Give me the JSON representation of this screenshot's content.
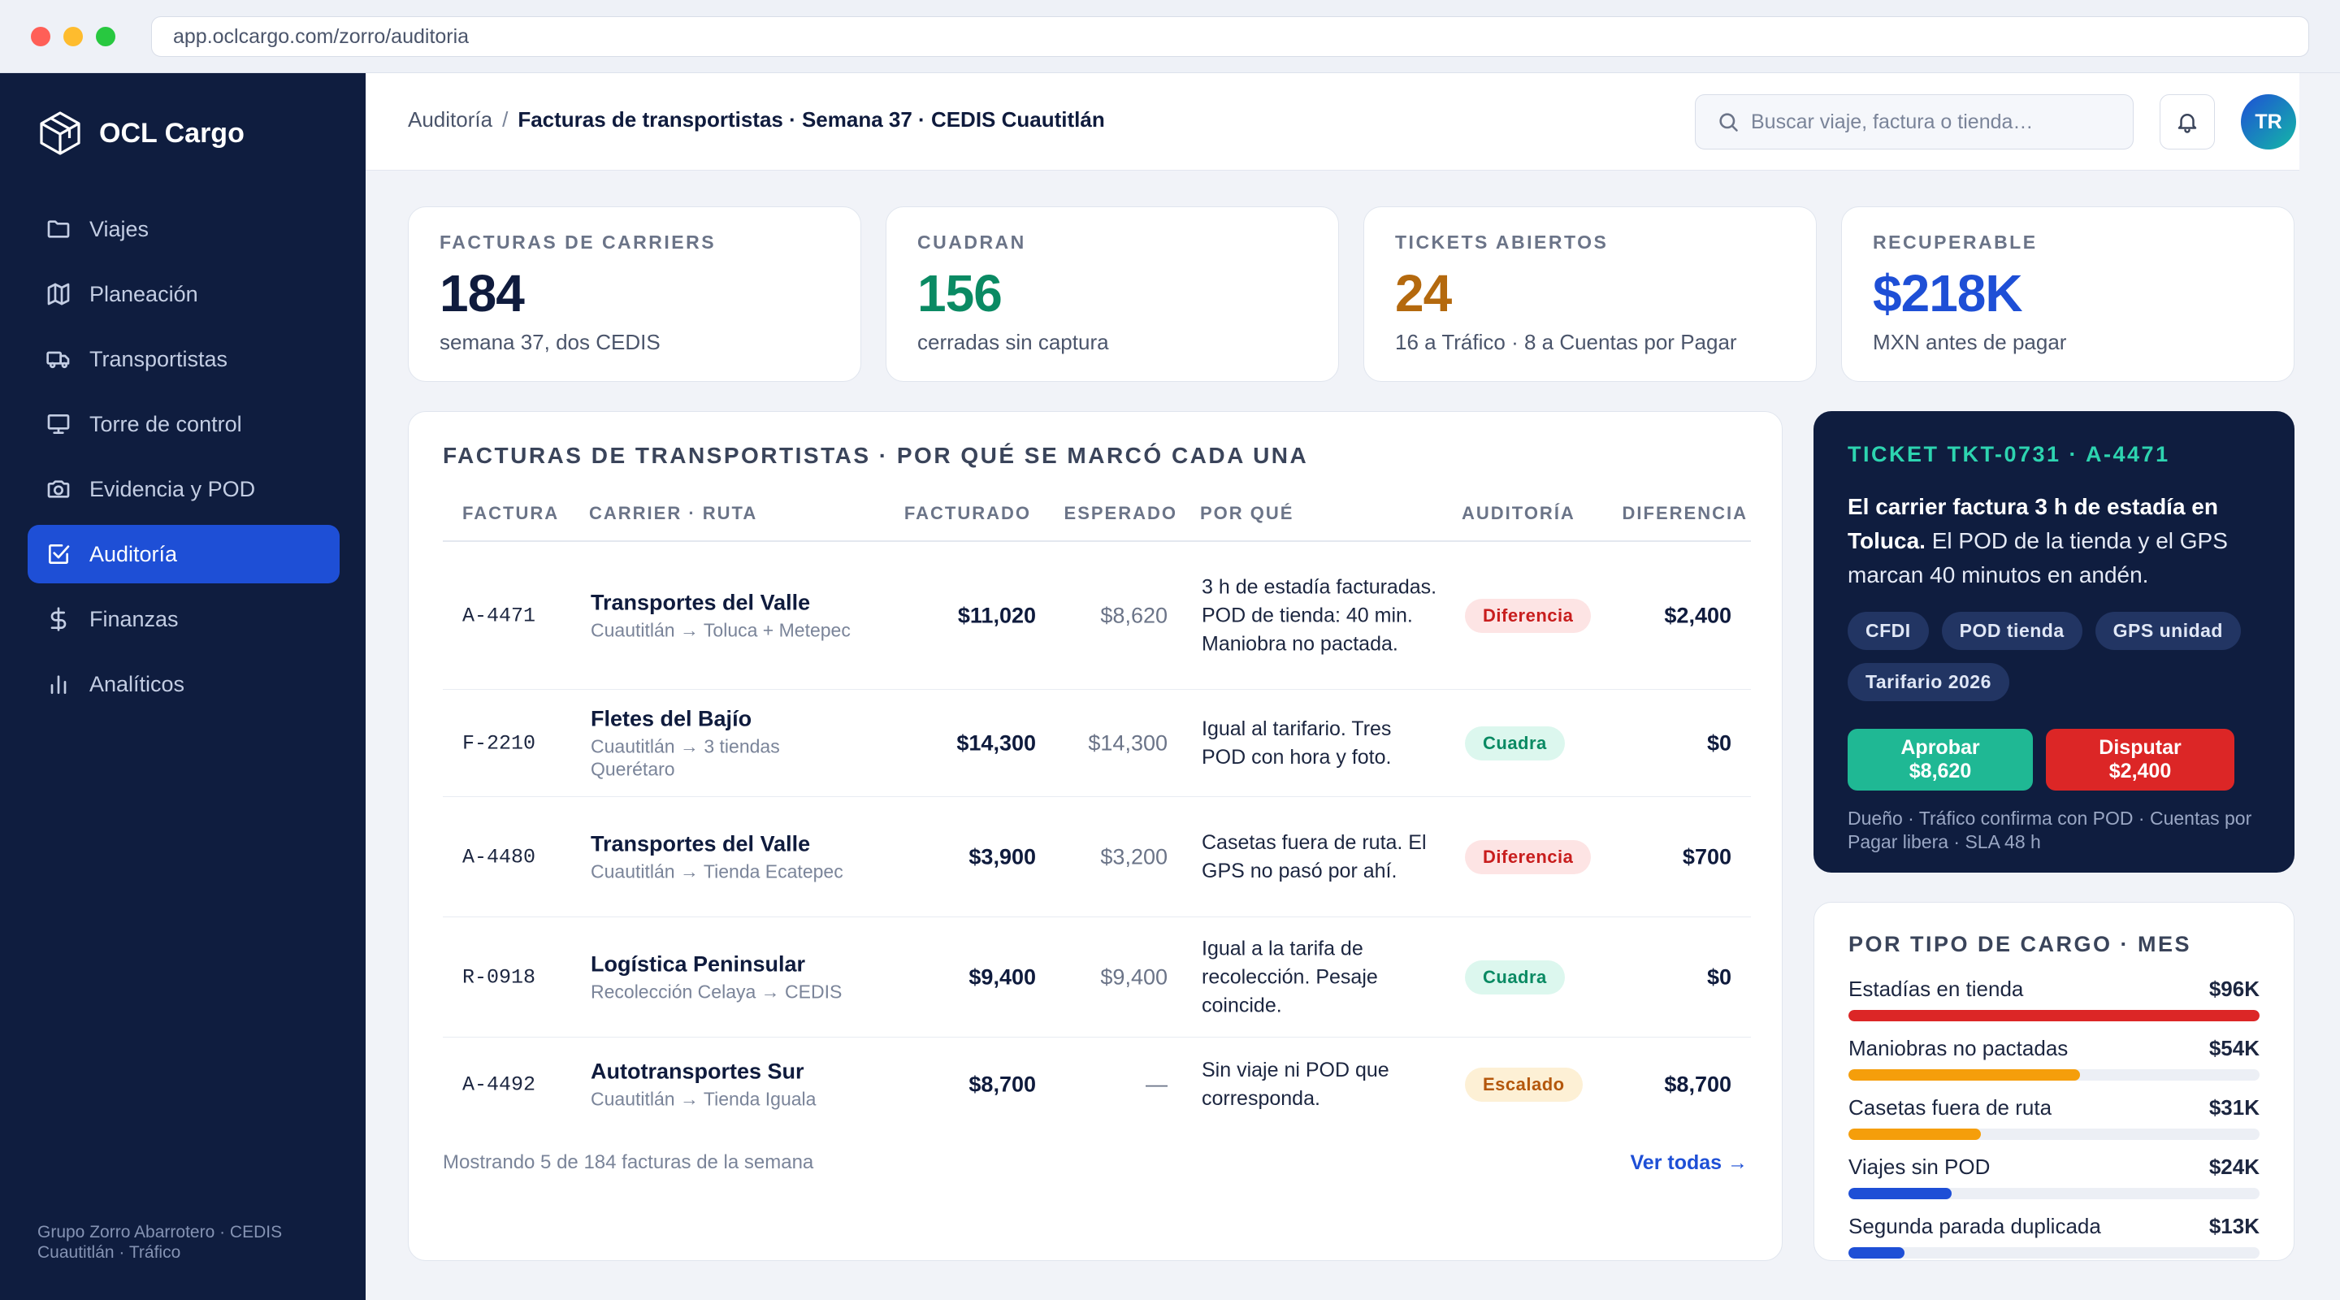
{
  "browser": {
    "url": "app.oclcargo.com/zorro/auditoria"
  },
  "brand": {
    "name": "OCL Cargo"
  },
  "sidebar": {
    "items": [
      {
        "label": "Viajes",
        "icon": "folder-icon"
      },
      {
        "label": "Planeación",
        "icon": "map-icon"
      },
      {
        "label": "Transportistas",
        "icon": "truck-icon"
      },
      {
        "label": "Torre de control",
        "icon": "monitor-icon"
      },
      {
        "label": "Evidencia y POD",
        "icon": "camera-icon"
      },
      {
        "label": "Auditoría",
        "icon": "check-square-icon",
        "active": true
      },
      {
        "label": "Finanzas",
        "icon": "dollar-icon"
      },
      {
        "label": "Analíticos",
        "icon": "bar-chart-icon"
      }
    ],
    "footer": "Grupo Zorro Abarrotero · CEDIS Cuautitlán · Tráfico"
  },
  "header": {
    "breadcrumb_root": "Auditoría",
    "breadcrumb_sep": "/",
    "breadcrumb_current": "Facturas de transportistas · Semana 37 · CEDIS Cuautitlán",
    "search_placeholder": "Buscar viaje, factura o tienda…",
    "avatar_initials": "TR"
  },
  "kpis": [
    {
      "label": "FACTURAS DE CARRIERS",
      "value": "184",
      "sub": "semana 37, dos CEDIS",
      "color": "#0f1b3d"
    },
    {
      "label": "CUADRAN",
      "value": "156",
      "sub": "cerradas sin captura",
      "color": "#0a8a63"
    },
    {
      "label": "TICKETS ABIERTOS",
      "value": "24",
      "sub": "16 a Tráfico · 8 a Cuentas por Pagar",
      "color": "#b4690e"
    },
    {
      "label": "RECUPERABLE",
      "value": "$218K",
      "sub": "MXN antes de pagar",
      "color": "#1e4fd6"
    }
  ],
  "invoices": {
    "title": "FACTURAS DE TRANSPORTISTAS · POR QUÉ SE MARCÓ CADA UNA",
    "columns": {
      "invoice": "FACTURA",
      "carrier": "CARRIER · RUTA",
      "billed": "FACTURADO",
      "expected": "ESPERADO",
      "why": "POR QUÉ",
      "audit": "AUDITORÍA",
      "diff": "DIFERENCIA"
    },
    "rows": [
      {
        "id": "A-4471",
        "carrier": "Transportes del Valle",
        "route": "Cuautitlán → Toluca + Metepec",
        "billed": "$11,020",
        "expected": "$8,620",
        "why": "3 h de estadía facturadas. POD de tienda: 40 min. Maniobra no pactada.",
        "status": "Diferencia",
        "status_color": "red",
        "diff": "$2,400"
      },
      {
        "id": "F-2210",
        "carrier": "Fletes del Bajío",
        "route": "Cuautitlán → 3 tiendas Querétaro",
        "billed": "$14,300",
        "expected": "$14,300",
        "why": "Igual al tarifario. Tres POD con hora y foto.",
        "status": "Cuadra",
        "status_color": "green",
        "diff": "$0"
      },
      {
        "id": "A-4480",
        "carrier": "Transportes del Valle",
        "route": "Cuautitlán → Tienda Ecatepec",
        "billed": "$3,900",
        "expected": "$3,200",
        "why": "Casetas fuera de ruta. El GPS no pasó por ahí.",
        "status": "Diferencia",
        "status_color": "red",
        "diff": "$700"
      },
      {
        "id": "R-0918",
        "carrier": "Logística Peninsular",
        "route": "Recolección Celaya → CEDIS",
        "billed": "$9,400",
        "expected": "$9,400",
        "why": "Igual a la tarifa de recolección. Pesaje coincide.",
        "status": "Cuadra",
        "status_color": "green",
        "diff": "$0"
      },
      {
        "id": "A-4492",
        "carrier": "Autotransportes Sur",
        "route": "Cuautitlán → Tienda Iguala",
        "billed": "$8,700",
        "expected": "—",
        "why": "Sin viaje ni POD que corresponda.",
        "status": "Escalado",
        "status_color": "amber",
        "diff": "$8,700"
      }
    ],
    "footer": "Mostrando 5 de 184 facturas de la semana",
    "view_all": "Ver todas →"
  },
  "ticket": {
    "title": "TICKET TKT-0731 · A-4471",
    "desc_bold": "El carrier factura 3 h de estadía en Toluca.",
    "desc_rest": " El POD de la tienda y el GPS marcan 40 minutos en andén.",
    "chips": [
      "CFDI",
      "POD tienda",
      "GPS unidad",
      "Tarifario 2026"
    ],
    "approve_label": "Aprobar $8,620",
    "dispute_label": "Disputar $2,400",
    "owner": "Dueño · Tráfico confirma con POD · Cuentas por Pagar libera · SLA 48 h"
  },
  "cargo_types": {
    "title": "POR TIPO DE CARGO · MES",
    "items": [
      {
        "label": "Estadías en tienda",
        "amount": "$96K",
        "value": 96,
        "color": "#dc2626"
      },
      {
        "label": "Maniobras no pactadas",
        "amount": "$54K",
        "value": 54,
        "color": "#f59e0b"
      },
      {
        "label": "Casetas fuera de ruta",
        "amount": "$31K",
        "value": 31,
        "color": "#f59e0b"
      },
      {
        "label": "Viajes sin POD",
        "amount": "$24K",
        "value": 24,
        "color": "#1e4fd6"
      },
      {
        "label": "Segunda parada duplicada",
        "amount": "$13K",
        "value": 13,
        "color": "#1e4fd6"
      }
    ]
  }
}
